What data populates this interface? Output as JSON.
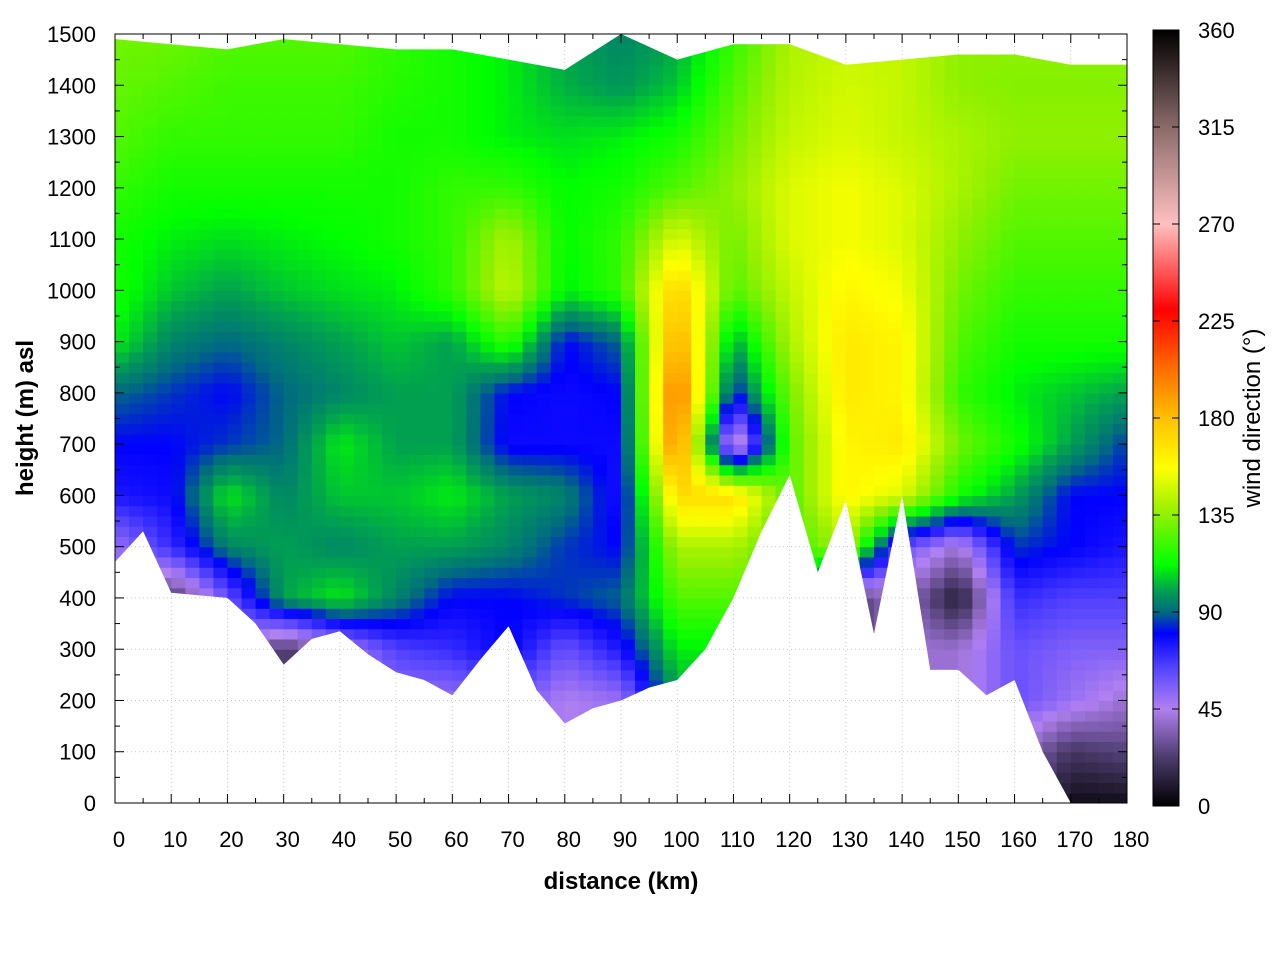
{
  "chart_data": {
    "type": "heatmap",
    "title": "",
    "xlabel": "distance (km)",
    "ylabel": "height (m) asl",
    "colorbar_label": "wind direction (°)",
    "xlim": [
      0,
      180
    ],
    "ylim": [
      0,
      1500
    ],
    "clim": [
      0,
      360
    ],
    "x_ticks": [
      0,
      10,
      20,
      30,
      40,
      50,
      60,
      70,
      80,
      90,
      100,
      110,
      120,
      130,
      140,
      150,
      160,
      170,
      180
    ],
    "y_ticks": [
      0,
      100,
      200,
      300,
      400,
      500,
      600,
      700,
      800,
      900,
      1000,
      1100,
      1200,
      1300,
      1400,
      1500
    ],
    "colorbar_ticks": [
      0,
      45,
      90,
      135,
      180,
      225,
      270,
      315,
      360
    ],
    "grid": true,
    "colormap": [
      [
        0,
        "#000000"
      ],
      [
        22,
        "#4a3a6a"
      ],
      [
        45,
        "#b080f0"
      ],
      [
        65,
        "#5040ff"
      ],
      [
        80,
        "#0000ff"
      ],
      [
        90,
        "#006a80"
      ],
      [
        100,
        "#00a050"
      ],
      [
        112,
        "#00ff00"
      ],
      [
        135,
        "#90f000"
      ],
      [
        157,
        "#ffff00"
      ],
      [
        180,
        "#ffc000"
      ],
      [
        202,
        "#ff7000"
      ],
      [
        230,
        "#ff0000"
      ],
      [
        270,
        "#ffc0c0"
      ],
      [
        315,
        "#8a6a6a"
      ],
      [
        360,
        "#000000"
      ]
    ],
    "grid_x_km": [
      0,
      10,
      20,
      30,
      40,
      50,
      60,
      70,
      80,
      90,
      100,
      110,
      120,
      130,
      140,
      150,
      160,
      170,
      180
    ],
    "grid_heights_m": [
      1500,
      1400,
      1300,
      1200,
      1100,
      1000,
      900,
      800,
      700,
      600,
      500,
      400,
      300,
      200,
      100,
      0
    ],
    "wind_direction_deg": [
      [
        130,
        130,
        125,
        125,
        125,
        120,
        115,
        110,
        100,
        95,
        100,
        120,
        140,
        145,
        145,
        135,
        135,
        135,
        135
      ],
      [
        128,
        125,
        122,
        122,
        122,
        118,
        115,
        110,
        102,
        98,
        105,
        125,
        142,
        148,
        145,
        135,
        133,
        133,
        133
      ],
      [
        125,
        120,
        120,
        120,
        120,
        115,
        115,
        110,
        108,
        110,
        115,
        130,
        145,
        150,
        145,
        140,
        135,
        135,
        135
      ],
      [
        120,
        115,
        115,
        115,
        115,
        115,
        120,
        120,
        112,
        115,
        125,
        135,
        150,
        155,
        150,
        140,
        130,
        130,
        130
      ],
      [
        115,
        110,
        108,
        110,
        112,
        115,
        120,
        140,
        112,
        120,
        150,
        130,
        150,
        155,
        150,
        135,
        125,
        125,
        125
      ],
      [
        115,
        105,
        100,
        105,
        108,
        110,
        120,
        145,
        110,
        120,
        175,
        125,
        145,
        160,
        155,
        130,
        120,
        120,
        120
      ],
      [
        110,
        95,
        90,
        95,
        100,
        105,
        100,
        120,
        80,
        90,
        190,
        100,
        140,
        165,
        160,
        125,
        115,
        115,
        115
      ],
      [
        90,
        85,
        80,
        90,
        95,
        100,
        100,
        80,
        78,
        80,
        205,
        80,
        130,
        165,
        160,
        120,
        110,
        105,
        100
      ],
      [
        80,
        80,
        85,
        90,
        110,
        100,
        100,
        78,
        78,
        78,
        200,
        30,
        125,
        160,
        165,
        130,
        115,
        100,
        85
      ],
      [
        75,
        78,
        110,
        95,
        105,
        105,
        110,
        100,
        95,
        75,
        170,
        170,
        125,
        160,
        150,
        115,
        100,
        80,
        80
      ],
      [
        50,
        70,
        95,
        100,
        95,
        100,
        100,
        95,
        85,
        80,
        140,
        140,
        120,
        140,
        60,
        40,
        85,
        80,
        75
      ],
      [
        40,
        20,
        60,
        100,
        110,
        95,
        80,
        80,
        85,
        90,
        125,
        125,
        120,
        20,
        40,
        10,
        70,
        65,
        65
      ],
      [
        40,
        20,
        50,
        20,
        45,
        65,
        70,
        80,
        60,
        75,
        110,
        110,
        110,
        20,
        40,
        40,
        60,
        55,
        55
      ],
      [
        40,
        20,
        40,
        20,
        40,
        50,
        50,
        60,
        45,
        50,
        100,
        100,
        100,
        20,
        40,
        40,
        60,
        50,
        40
      ],
      [
        40,
        20,
        40,
        20,
        40,
        50,
        50,
        60,
        45,
        50,
        100,
        100,
        100,
        20,
        40,
        40,
        40,
        20,
        25
      ],
      [
        40,
        20,
        40,
        20,
        40,
        50,
        50,
        60,
        45,
        50,
        100,
        100,
        100,
        20,
        40,
        40,
        30,
        5,
        5
      ]
    ],
    "terrain_x_km": [
      0,
      5,
      10,
      15,
      20,
      25,
      30,
      35,
      40,
      45,
      50,
      55,
      60,
      65,
      70,
      75,
      80,
      85,
      90,
      95,
      100,
      105,
      110,
      115,
      120,
      125,
      130,
      135,
      140,
      145,
      150,
      155,
      160,
      165,
      170,
      175,
      180
    ],
    "terrain_height_m": [
      470,
      530,
      410,
      405,
      400,
      350,
      270,
      320,
      335,
      290,
      255,
      240,
      210,
      280,
      345,
      220,
      155,
      185,
      200,
      225,
      240,
      300,
      400,
      530,
      640,
      450,
      590,
      330,
      600,
      260,
      260,
      210,
      240,
      100,
      0,
      0,
      0
    ],
    "top_x_km": [
      0,
      10,
      20,
      30,
      40,
      50,
      60,
      70,
      80,
      90,
      100,
      110,
      120,
      130,
      140,
      150,
      160,
      170,
      180
    ],
    "top_height_m": [
      1490,
      1480,
      1470,
      1490,
      1480,
      1470,
      1470,
      1450,
      1430,
      1500,
      1450,
      1480,
      1480,
      1440,
      1450,
      1460,
      1460,
      1440,
      1440
    ]
  }
}
